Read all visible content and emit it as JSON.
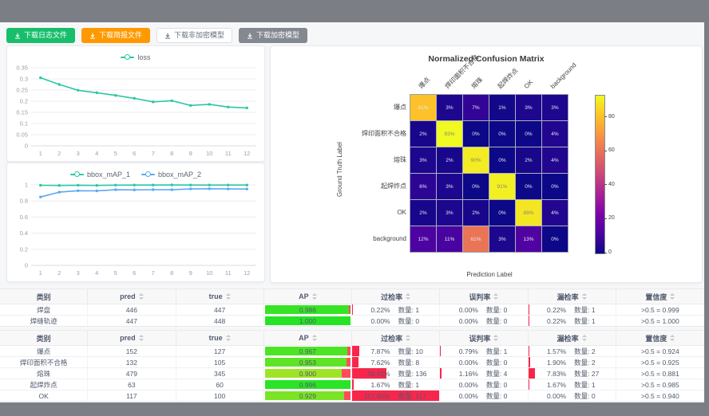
{
  "toolbar": {
    "buttons": [
      {
        "label": "下载日志文件",
        "style": "green",
        "icon": "download-icon"
      },
      {
        "label": "下载简报文件",
        "style": "orange",
        "icon": "download-icon"
      },
      {
        "label": "下载非加密模型",
        "style": "default",
        "icon": "download-icon"
      },
      {
        "label": "下载加密模型",
        "style": "gray",
        "icon": "download-icon"
      }
    ]
  },
  "colors": {
    "teal_series": "#2cc7a2",
    "blue_series": "#5aa9f2",
    "rate_bar_red": "#f9264b",
    "ap_remainder_red": "#ff4d5b",
    "button_green": "#19be6b",
    "button_orange": "#ff9900"
  },
  "chart_data": [
    {
      "type": "line",
      "x": [
        "1",
        "2",
        "3",
        "4",
        "5",
        "6",
        "7",
        "8",
        "9",
        "10",
        "11",
        "12"
      ],
      "series": [
        {
          "name": "loss",
          "color": "#2cc7a2",
          "values": [
            0.305,
            0.275,
            0.249,
            0.238,
            0.226,
            0.213,
            0.197,
            0.202,
            0.181,
            0.186,
            0.174,
            0.17
          ]
        }
      ],
      "yticks": [
        "0",
        "0.05",
        "0.1",
        "0.15",
        "0.2",
        "0.25",
        "0.3",
        "0.35"
      ],
      "ylim": [
        0,
        0.35
      ],
      "grid": true,
      "legend_position": "top"
    },
    {
      "type": "line",
      "x": [
        "1",
        "2",
        "3",
        "4",
        "5",
        "6",
        "7",
        "8",
        "9",
        "10",
        "11",
        "12"
      ],
      "series": [
        {
          "name": "bbox_mAP_1",
          "color": "#2cc7a2",
          "values": [
            0.995,
            0.993,
            0.996,
            0.993,
            0.997,
            0.998,
            0.998,
            0.999,
            0.998,
            0.998,
            0.998,
            0.998
          ]
        },
        {
          "name": "bbox_mAP_2",
          "color": "#5aa9f2",
          "values": [
            0.85,
            0.91,
            0.928,
            0.926,
            0.94,
            0.938,
            0.941,
            0.94,
            0.95,
            0.952,
            0.95,
            0.949
          ]
        }
      ],
      "yticks": [
        "0",
        "0.2",
        "0.4",
        "0.6",
        "0.8",
        "1"
      ],
      "ylim": [
        0,
        1
      ],
      "grid": true,
      "legend_position": "top"
    },
    {
      "type": "heatmap",
      "title": "Normalized Confusion Matrix",
      "xlabel": "Prediction Label",
      "ylabel": "Ground Truth Label",
      "labels": [
        "爆点",
        "焊印面积不合格",
        "熔珠",
        "起焊炸点",
        "OK",
        "background"
      ],
      "unit": "%",
      "matrix_pct": [
        [
          81,
          3,
          7,
          1,
          3,
          3
        ],
        [
          2,
          93,
          0,
          0,
          0,
          4
        ],
        [
          3,
          2,
          90,
          0,
          2,
          4
        ],
        [
          6,
          3,
          0,
          91,
          0,
          0
        ],
        [
          2,
          3,
          2,
          0,
          89,
          4
        ],
        [
          12,
          11,
          61,
          3,
          13,
          0
        ]
      ],
      "vmin": 0,
      "vmax": 93,
      "colorbar_ticks": [
        0,
        20,
        40,
        60,
        80
      ],
      "colormap": "plasma"
    }
  ],
  "tables": [
    {
      "columns": [
        {
          "label": "类别",
          "sortable": false
        },
        {
          "label": "pred",
          "sortable": true
        },
        {
          "label": "true",
          "sortable": true
        },
        {
          "label": "AP",
          "sortable": true
        },
        {
          "label": "过检率",
          "sortable": true
        },
        {
          "label": "误判率",
          "sortable": true
        },
        {
          "label": "漏检率",
          "sortable": true
        },
        {
          "label": "置信度",
          "sortable": true
        }
      ],
      "rows": [
        {
          "label": "焊盘",
          "pred": "446",
          "true": "447",
          "ap": "0.986",
          "overkill_pct": "0.22%",
          "overkill_count": "数量: 1",
          "misjudge_pct": "0.00%",
          "misjudge_count": "数量: 0",
          "miss_pct": "0.22%",
          "miss_count": "数量: 1",
          "confidence": ">0.5 = 0.999"
        },
        {
          "label": "焊缝轨迹",
          "pred": "447",
          "true": "448",
          "ap": "1.000",
          "overkill_pct": "0.00%",
          "overkill_count": "数量: 0",
          "misjudge_pct": "0.00%",
          "misjudge_count": "数量: 0",
          "miss_pct": "0.22%",
          "miss_count": "数量: 1",
          "confidence": ">0.5 = 1.000"
        }
      ]
    },
    {
      "columns": [
        {
          "label": "类别",
          "sortable": false
        },
        {
          "label": "pred",
          "sortable": true
        },
        {
          "label": "true",
          "sortable": true
        },
        {
          "label": "AP",
          "sortable": true
        },
        {
          "label": "过检率",
          "sortable": true
        },
        {
          "label": "误判率",
          "sortable": true
        },
        {
          "label": "漏检率",
          "sortable": true
        },
        {
          "label": "置信度",
          "sortable": true
        }
      ],
      "rows": [
        {
          "label": "爆点",
          "pred": "152",
          "true": "127",
          "ap": "0.967",
          "overkill_pct": "7.87%",
          "overkill_count": "数量: 10",
          "misjudge_pct": "0.79%",
          "misjudge_count": "数量: 1",
          "miss_pct": "1.57%",
          "miss_count": "数量: 2",
          "confidence": ">0.5 = 0.924"
        },
        {
          "label": "焊印面积不合格",
          "pred": "132",
          "true": "105",
          "ap": "0.953",
          "overkill_pct": "7.62%",
          "overkill_count": "数量: 8",
          "misjudge_pct": "0.00%",
          "misjudge_count": "数量: 0",
          "miss_pct": "1.90%",
          "miss_count": "数量: 2",
          "confidence": ">0.5 = 0.925"
        },
        {
          "label": "熔珠",
          "pred": "479",
          "true": "345",
          "ap": "0.900",
          "overkill_pct": "39.42%",
          "overkill_count": "数量: 136",
          "misjudge_pct": "1.16%",
          "misjudge_count": "数量: 4",
          "miss_pct": "7.83%",
          "miss_count": "数量: 27",
          "confidence": ">0.5 = 0.881"
        },
        {
          "label": "起焊炸点",
          "pred": "63",
          "true": "60",
          "ap": "0.996",
          "overkill_pct": "1.67%",
          "overkill_count": "数量: 1",
          "misjudge_pct": "0.00%",
          "misjudge_count": "数量: 0",
          "miss_pct": "1.67%",
          "miss_count": "数量: 1",
          "confidence": ">0.5 = 0.985"
        },
        {
          "label": "OK",
          "pred": "117",
          "true": "100",
          "ap": "0.929",
          "overkill_pct": "117.00%",
          "overkill_count": "数量: 117",
          "misjudge_pct": "0.00%",
          "misjudge_count": "数量: 0",
          "miss_pct": "0.00%",
          "miss_count": "数量: 0",
          "confidence": ">0.5 = 0.940"
        }
      ]
    }
  ]
}
